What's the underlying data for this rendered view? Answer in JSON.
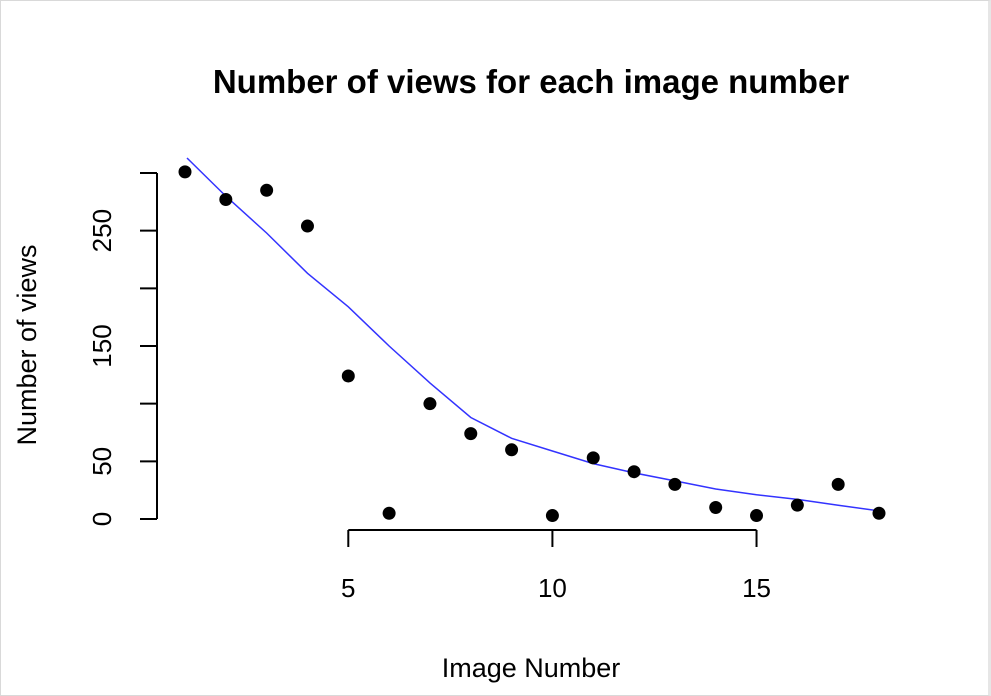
{
  "chart_data": {
    "type": "scatter",
    "title": "Number of views for each image number",
    "xlabel": "Image Number",
    "ylabel": "Number of views",
    "xlim": [
      1,
      18
    ],
    "ylim": [
      0,
      300
    ],
    "x_ticks": [
      5,
      10,
      15
    ],
    "y_ticks": [
      0,
      50,
      100,
      150,
      200,
      250,
      300
    ],
    "y_tick_labels": [
      "0",
      "50",
      "",
      "150",
      "",
      "250",
      ""
    ],
    "points": {
      "x": [
        1,
        2,
        3,
        4,
        5,
        6,
        7,
        8,
        9,
        10,
        11,
        12,
        13,
        14,
        15,
        16,
        17,
        18
      ],
      "y": [
        301,
        277,
        285,
        254,
        124,
        5,
        100,
        74,
        60,
        3,
        53,
        41,
        30,
        10,
        3,
        12,
        30,
        5
      ],
      "color": "#000000"
    },
    "smooth_line": {
      "x": [
        1.05,
        2,
        3,
        4,
        5,
        6,
        7,
        8,
        9,
        10,
        11,
        12,
        13,
        14,
        15,
        16,
        17,
        18
      ],
      "y": [
        313,
        280,
        248,
        213,
        184,
        150,
        118,
        88,
        70,
        59,
        48,
        40,
        33,
        26,
        21,
        17,
        12,
        7
      ],
      "color": "#3333ff"
    },
    "grid": false,
    "legend": "none"
  }
}
